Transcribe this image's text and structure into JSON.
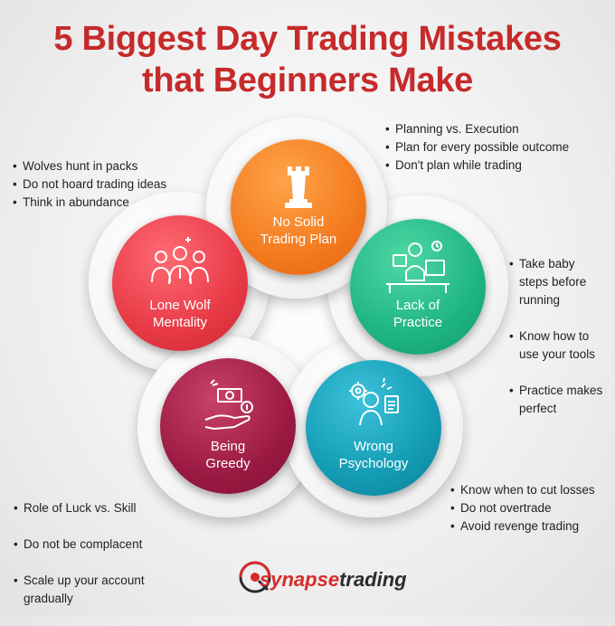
{
  "title": {
    "line1": "5 Biggest Day Trading Mistakes",
    "line2": "that Beginners Make"
  },
  "colors": {
    "title": "#c62a2a",
    "orange": "#f47b20",
    "green": "#1fb582",
    "teal": "#149cb5",
    "maroon": "#9c1a43",
    "red": "#e83a47"
  },
  "mistakes": [
    {
      "line1": "No Solid",
      "line2": "Trading Plan",
      "icon": "chess-rook-icon",
      "bullets": [
        "Planning vs. Execution",
        "Plan for every possible outcome",
        "Don't plan while trading"
      ]
    },
    {
      "line1": "Lack of",
      "line2": "Practice",
      "icon": "trader-at-desk-icon",
      "bullets": [
        "Take baby\nsteps before\nrunning",
        "Know how to\nuse your tools",
        "Practice makes\nperfect"
      ]
    },
    {
      "line1": "Wrong",
      "line2": "Psychology",
      "icon": "gear-head-icon",
      "bullets": [
        "Know when to cut losses",
        "Do not overtrade",
        "Avoid revenge trading"
      ]
    },
    {
      "line1": "Being",
      "line2": "Greedy",
      "icon": "hand-money-icon",
      "bullets": [
        "Role of Luck vs. Skill",
        "Do not be complacent",
        "Scale up your account\ngradually"
      ]
    },
    {
      "line1": "Lone Wolf",
      "line2": "Mentality",
      "icon": "team-people-icon",
      "bullets": [
        "Wolves hunt in packs",
        "Do not hoard trading ideas",
        "Think in abundance"
      ]
    }
  ],
  "logo": {
    "part1": "synapse",
    "part2": "trading"
  }
}
